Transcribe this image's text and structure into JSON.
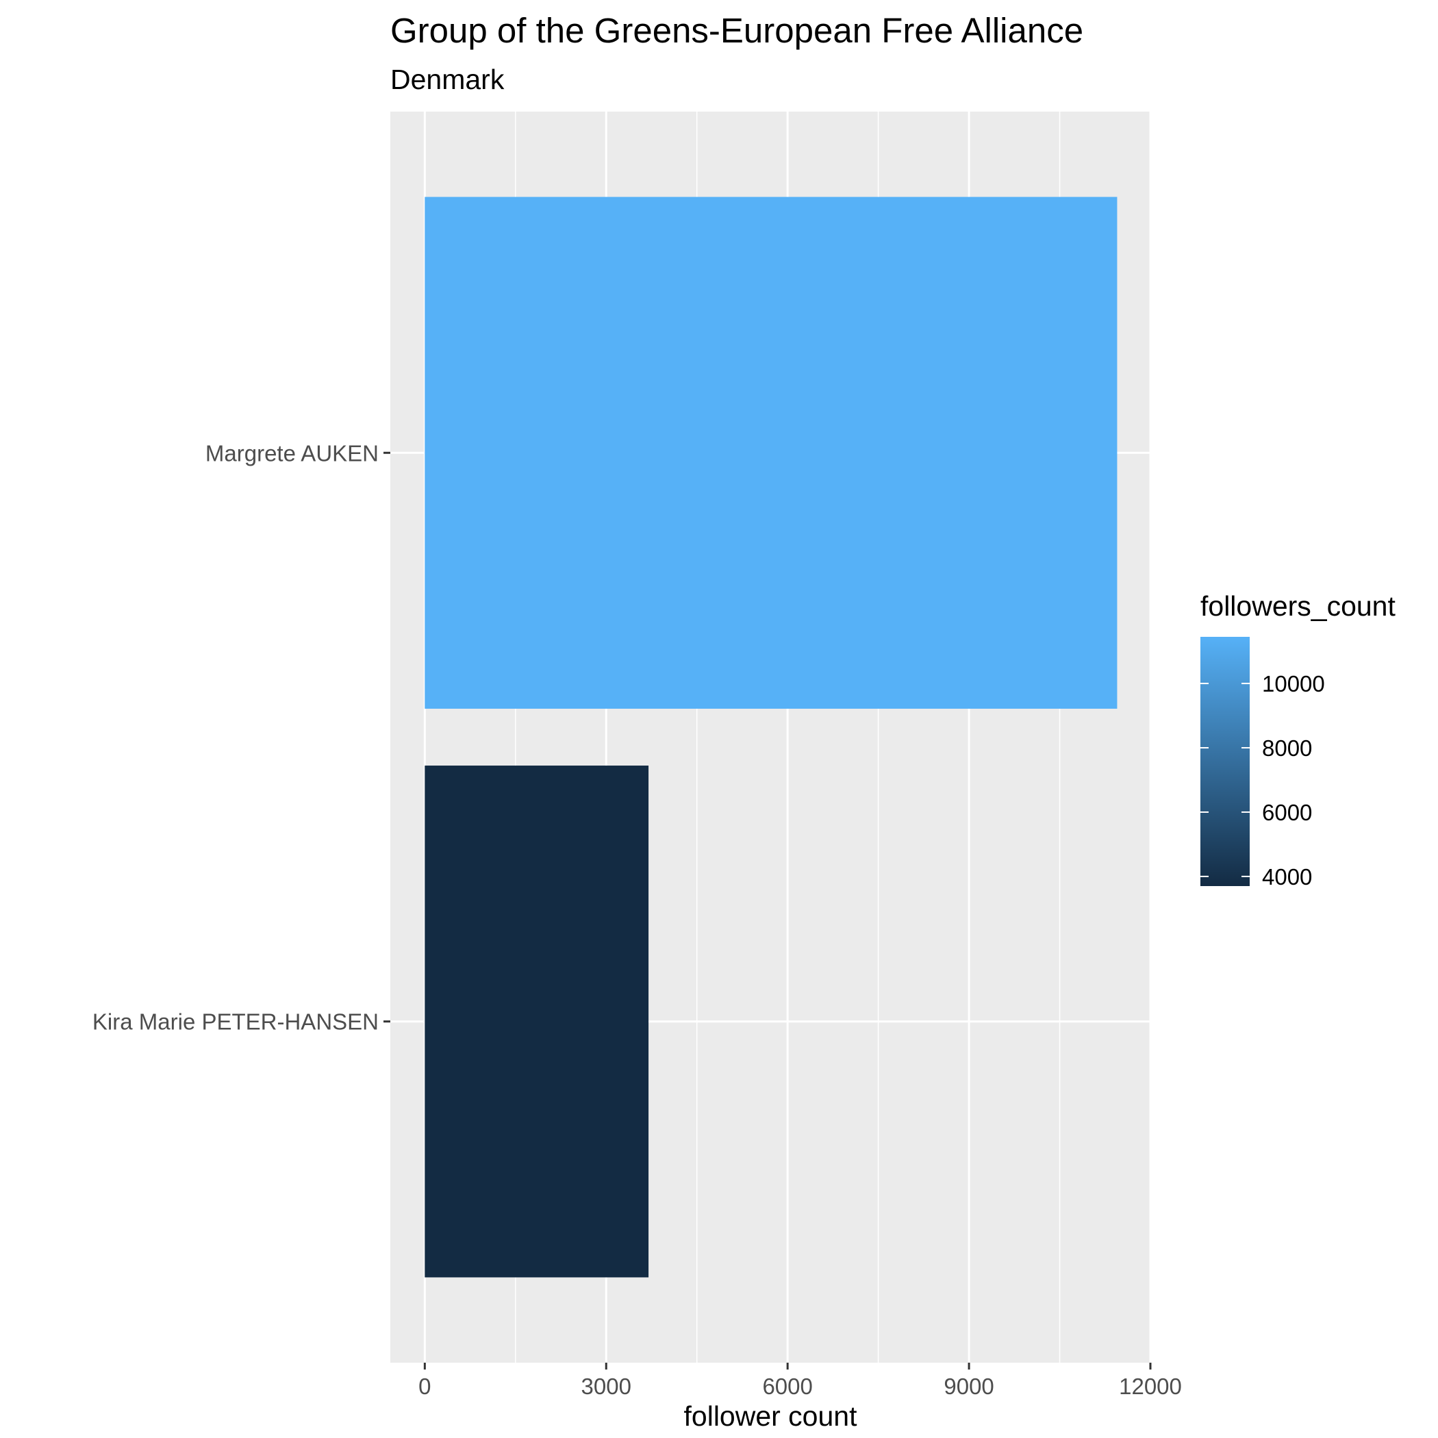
{
  "chart_data": {
    "type": "bar",
    "orientation": "horizontal",
    "title": "Group of the Greens-European Free Alliance",
    "subtitle": "Denmark",
    "xlabel": "follower count",
    "ylabel": "",
    "categories": [
      "Margrete AUKEN",
      "Kira Marie PETER-HANSEN"
    ],
    "values": [
      11450,
      3700
    ],
    "xlim": [
      -570,
      12000
    ],
    "x_ticks": [
      "0",
      "3000",
      "6000",
      "9000",
      "12000"
    ],
    "grid": true,
    "panel_background": "#ebebeb",
    "grid_color": "#ffffff",
    "legend": {
      "title": "followers_count",
      "placement": "right",
      "ticks": [
        "10000",
        "8000",
        "6000",
        "4000"
      ],
      "tick_values": [
        10000,
        8000,
        6000,
        4000
      ],
      "range": [
        3700,
        11450
      ],
      "low_color": "#132b43",
      "high_color": "#56b1f7"
    }
  }
}
